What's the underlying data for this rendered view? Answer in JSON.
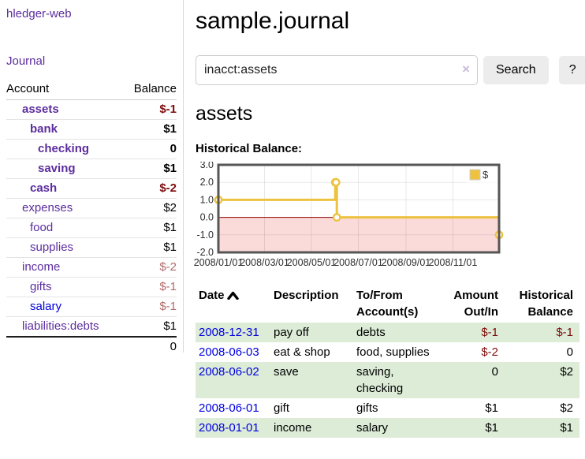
{
  "sidebar": {
    "app_title": "hledger-web",
    "journal_link": "Journal",
    "accounts_table": {
      "headers": {
        "account": "Account",
        "balance": "Balance"
      },
      "rows": [
        {
          "name": "assets",
          "depth": 1,
          "bold": true,
          "balance": "$-1"
        },
        {
          "name": "bank",
          "depth": 2,
          "bold": true,
          "balance": "$1"
        },
        {
          "name": "checking",
          "depth": 3,
          "bold": true,
          "balance": "0"
        },
        {
          "name": "saving",
          "depth": 3,
          "bold": true,
          "balance": "$1"
        },
        {
          "name": "cash",
          "depth": 2,
          "bold": true,
          "balance": "$-2"
        },
        {
          "name": "expenses",
          "depth": 1,
          "bold": false,
          "balance": "$2"
        },
        {
          "name": "food",
          "depth": 2,
          "bold": false,
          "balance": "$1"
        },
        {
          "name": "supplies",
          "depth": 2,
          "bold": false,
          "balance": "$1"
        },
        {
          "name": "income",
          "depth": 1,
          "bold": false,
          "balance": "$-2"
        },
        {
          "name": "gifts",
          "depth": 2,
          "bold": false,
          "balance": "$-1"
        },
        {
          "name": "salary",
          "depth": 2,
          "bold": false,
          "balance": "$-1",
          "unvisited": true
        },
        {
          "name": "liabilities:debts",
          "depth": 1,
          "bold": false,
          "balance": "$1"
        }
      ],
      "total": "0"
    }
  },
  "header": {
    "title": "sample.journal"
  },
  "search": {
    "value": "inacct:assets",
    "clear_icon": "×",
    "search_label": "Search",
    "help_label": "?"
  },
  "account_page": {
    "heading": "assets",
    "chart_title": "Historical Balance:"
  },
  "chart_data": {
    "type": "line",
    "step": true,
    "title": "Historical Balance:",
    "series": [
      {
        "name": "$",
        "color": "#edc240",
        "points": [
          [
            "2008-01-01",
            1
          ],
          [
            "2008-06-01",
            2
          ],
          [
            "2008-06-02",
            2
          ],
          [
            "2008-06-03",
            0
          ],
          [
            "2008-12-31",
            -1
          ]
        ]
      }
    ],
    "xlim": [
      "2008-01-01",
      "2008-12-31"
    ],
    "ylim": [
      -2,
      3
    ],
    "y_ticks": [
      "3.0",
      "2.0",
      "1.0",
      "0.0",
      "-1.0",
      "-2.0"
    ],
    "x_ticks": [
      "2008/01/01",
      "2008/03/01",
      "2008/05/01",
      "2008/07/01",
      "2008/09/01",
      "2008/11/01"
    ],
    "grid": true,
    "legend_position": "top-right",
    "zero_line_color": "#8b0000",
    "negative_region_fill": "#fbdada",
    "border_color": "#565656"
  },
  "register": {
    "headers": {
      "date": "Date",
      "description": "Description",
      "accounts": "To/From Account(s)",
      "amount": "Amount Out/In",
      "balance": "Historical Balance"
    },
    "sort": "ascending",
    "sort_icon": "chevron-up",
    "rows": [
      {
        "date": "2008-12-31",
        "description": "pay off",
        "accounts": "debts",
        "amount": "$-1",
        "balance": "$-1"
      },
      {
        "date": "2008-06-03",
        "description": "eat & shop",
        "accounts": "food, supplies",
        "amount": "$-2",
        "balance": "0"
      },
      {
        "date": "2008-06-02",
        "description": "save",
        "accounts": "saving, checking",
        "amount": "0",
        "balance": "$2"
      },
      {
        "date": "2008-06-01",
        "description": "gift",
        "accounts": "gifts",
        "amount": "$1",
        "balance": "$2"
      },
      {
        "date": "2008-01-01",
        "description": "income",
        "accounts": "salary",
        "amount": "$1",
        "balance": "$1"
      }
    ]
  },
  "colors": {
    "link_purple": "#5c2d9e",
    "link_blue": "#0000e0",
    "negative_strong": "#7d0b0b",
    "negative_soft": "#b36b6b",
    "row_stripe_green": "#dcecd7",
    "series_gold": "#edc240",
    "button_bg": "#ececec"
  }
}
